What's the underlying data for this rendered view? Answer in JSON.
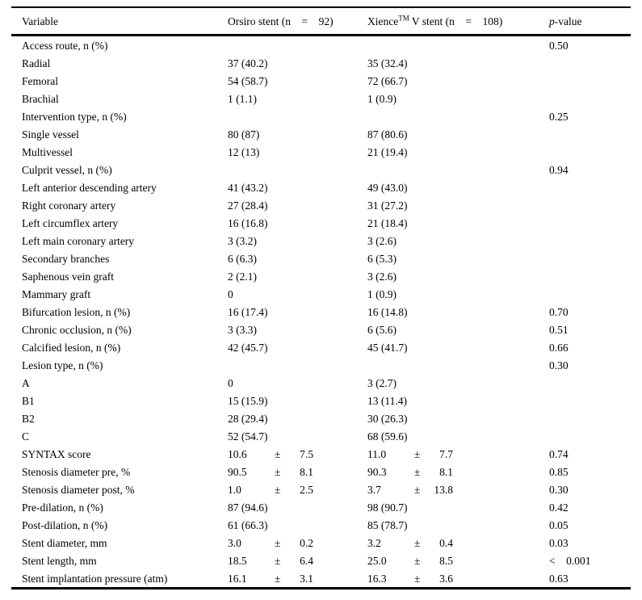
{
  "table": {
    "plus_minus": "±",
    "header": {
      "variable": "Variable",
      "orsiro": "Orsiro stent (n    =    92)",
      "xience": {
        "brand": "Xience",
        "tm": "TM",
        "rest": " V stent (n    =    108)"
      },
      "pvalue": {
        "italic": "p",
        "rest": "-value"
      }
    },
    "rows": [
      {
        "label": "Access route, n (%)",
        "orsiro": "",
        "xience": "",
        "p": "0.50"
      },
      {
        "label": "Radial",
        "orsiro": "37 (40.2)",
        "xience": "35 (32.4)",
        "p": ""
      },
      {
        "label": "Femoral",
        "orsiro": "54 (58.7)",
        "xience": "72 (66.7)",
        "p": ""
      },
      {
        "label": "Brachial",
        "orsiro": "1 (1.1)",
        "xience": "1 (0.9)",
        "p": ""
      },
      {
        "label": "Intervention type, n (%)",
        "orsiro": "",
        "xience": "",
        "p": "0.25"
      },
      {
        "label": "Single vessel",
        "orsiro": "80 (87)",
        "xience": "87 (80.6)",
        "p": ""
      },
      {
        "label": "Multivessel",
        "orsiro": "12 (13)",
        "xience": "21 (19.4)",
        "p": ""
      },
      {
        "label": "Culprit vessel, n (%)",
        "orsiro": "",
        "xience": "",
        "p": "0.94"
      },
      {
        "label": "Left anterior descending artery",
        "orsiro": "41 (43.2)",
        "xience": "49 (43.0)",
        "p": ""
      },
      {
        "label": "Right coronary artery",
        "orsiro": "27 (28.4)",
        "xience": "31 (27.2)",
        "p": ""
      },
      {
        "label": "Left circumflex artery",
        "orsiro": "16 (16.8)",
        "xience": "21 (18.4)",
        "p": ""
      },
      {
        "label": "Left main coronary artery",
        "orsiro": "3 (3.2)",
        "xience": "3 (2.6)",
        "p": ""
      },
      {
        "label": "Secondary branches",
        "orsiro": "6 (6.3)",
        "xience": "6 (5.3)",
        "p": ""
      },
      {
        "label": "Saphenous vein graft",
        "orsiro": "2 (2.1)",
        "xience": "3 (2.6)",
        "p": ""
      },
      {
        "label": "Mammary graft",
        "orsiro": "0",
        "xience": "1 (0.9)",
        "p": ""
      },
      {
        "label": "Bifurcation lesion, n (%)",
        "orsiro": "16 (17.4)",
        "xience": "16 (14.8)",
        "p": "0.70"
      },
      {
        "label": "Chronic occlusion, n (%)",
        "orsiro": "3 (3.3)",
        "xience": "6 (5.6)",
        "p": "0.51"
      },
      {
        "label": "Calcified lesion, n (%)",
        "orsiro": "42 (45.7)",
        "xience": "45 (41.7)",
        "p": "0.66"
      },
      {
        "label": "Lesion type, n (%)",
        "orsiro": "",
        "xience": "",
        "p": "0.30"
      },
      {
        "label": "A",
        "orsiro": "0",
        "xience": "3 (2.7)",
        "p": ""
      },
      {
        "label": "B1",
        "orsiro": "15 (15.9)",
        "xience": "13 (11.4)",
        "p": ""
      },
      {
        "label": "B2",
        "orsiro": "28 (29.4)",
        "xience": "30 (26.3)",
        "p": ""
      },
      {
        "label": "C",
        "orsiro": "52 (54.7)",
        "xience": "68 (59.6)",
        "p": ""
      },
      {
        "label": "SYNTAX score",
        "orsiro": [
          "10.6",
          "7.5"
        ],
        "xience": [
          "11.0",
          "7.7"
        ],
        "p": "0.74"
      },
      {
        "label": "Stenosis diameter pre, %",
        "orsiro": [
          "90.5",
          "8.1"
        ],
        "xience": [
          "90.3",
          "8.1"
        ],
        "p": "0.85"
      },
      {
        "label": "Stenosis diameter post, %",
        "orsiro": [
          "1.0",
          "2.5"
        ],
        "xience": [
          "3.7",
          "13.8"
        ],
        "p": "0.30"
      },
      {
        "label": "Pre-dilation, n (%)",
        "orsiro": "87 (94.6)",
        "xience": "98 (90.7)",
        "p": "0.42"
      },
      {
        "label": "Post-dilation, n (%)",
        "orsiro": "61 (66.3)",
        "xience": "85 (78.7)",
        "p": "0.05"
      },
      {
        "label": "Stent diameter, mm",
        "orsiro": [
          "3.0",
          "0.2"
        ],
        "xience": [
          "3.2",
          "0.4"
        ],
        "p": "0.03"
      },
      {
        "label": "Stent length, mm",
        "orsiro": [
          "18.5",
          "6.4"
        ],
        "xience": [
          "25.0",
          "8.5"
        ],
        "p": "<    0.001"
      },
      {
        "label": "Stent implantation pressure (atm)",
        "orsiro": [
          "16.1",
          "3.1"
        ],
        "xience": [
          "16.3",
          "3.6"
        ],
        "p": "0.63"
      }
    ]
  }
}
